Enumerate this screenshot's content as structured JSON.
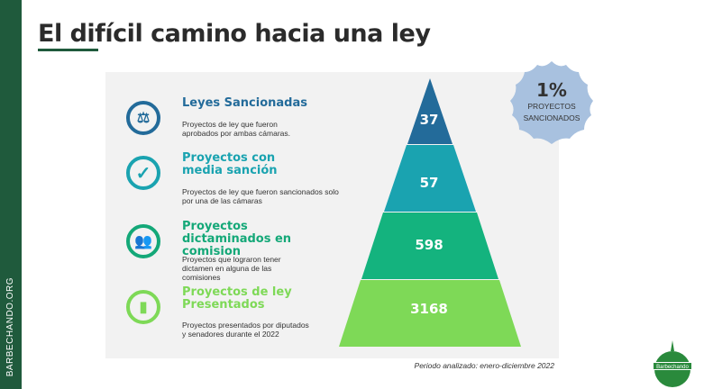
{
  "side_label": "BARBECHANDO.ORG",
  "title": "El difícil camino hacia una ley",
  "items": [
    {
      "title": "Leyes Sancionadas",
      "desc": "Proyectos de ley que fueron aprobados por ambas cámaras.",
      "icon": "gavel-icon",
      "color": "#236b9a",
      "value": "37"
    },
    {
      "title": "Proyectos con media sanción",
      "desc": "Proyectos de ley que fueron sancionados solo por una de las cámaras",
      "icon": "check-icon",
      "color": "#1aa3b0",
      "value": "57"
    },
    {
      "title": "Proyectos dictaminados en comision",
      "desc": "Proyectos que lograron tener dictamen en alguna de las comisiones",
      "icon": "meeting-icon",
      "color": "#14a878",
      "value": "598"
    },
    {
      "title": "Proyectos de ley Presentados",
      "desc": "Proyectos presentados por diputados y senadores durante el 2022",
      "icon": "documents-icon",
      "color": "#7ed957",
      "value": "3168"
    }
  ],
  "badge": {
    "value": "1%",
    "line1": "PROYECTOS",
    "line2": "SANCIONADOS",
    "color": "#a8c1df"
  },
  "period": "Periodo analizado: enero-diciembre 2022",
  "logo_text": "Barbechando"
}
